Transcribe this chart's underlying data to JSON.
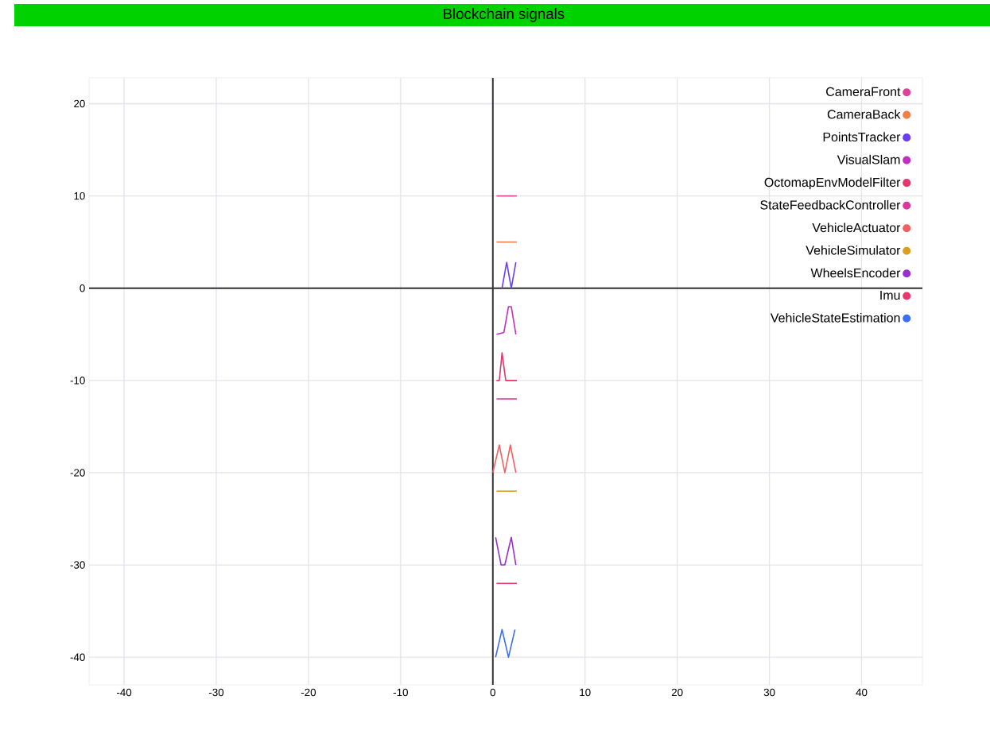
{
  "chart_data": {
    "type": "line",
    "title": "Blockchain signals",
    "xlim": [
      -43.8,
      46.6
    ],
    "ylim": [
      -43,
      22.8
    ],
    "xticks": [
      -40,
      -30,
      -20,
      -10,
      0,
      10,
      20,
      30,
      40
    ],
    "yticks": [
      -40,
      -30,
      -20,
      -10,
      0,
      10,
      20
    ],
    "grid": true,
    "legend": "top right",
    "series": [
      {
        "name": "CameraFront",
        "color": "#e0409a",
        "x": [
          0.4,
          2.6
        ],
        "values": [
          10,
          10
        ]
      },
      {
        "name": "CameraBack",
        "color": "#f07f4a",
        "x": [
          0.4,
          2.6
        ],
        "values": [
          5,
          5
        ]
      },
      {
        "name": "PointsTracker",
        "color": "#6a3ff0",
        "x": [
          1.0,
          1.5,
          2.0,
          2.5
        ],
        "values": [
          0,
          2.8,
          0,
          2.8
        ]
      },
      {
        "name": "VisualSlam",
        "color": "#c030c0",
        "x": [
          0.4,
          1.2,
          1.7,
          2.0,
          2.5
        ],
        "values": [
          -5,
          -4.8,
          -2,
          -2,
          -5
        ]
      },
      {
        "name": "OctomapEnvModelFilter",
        "color": "#e0386a",
        "x": [
          0.4,
          0.7,
          1.0,
          1.4,
          2.6
        ],
        "values": [
          -10,
          -10,
          -7,
          -10,
          -10
        ]
      },
      {
        "name": "StateFeedbackController",
        "color": "#d83a9a",
        "x": [
          0.4,
          2.6
        ],
        "values": [
          -12,
          -12
        ]
      },
      {
        "name": "VehicleActuator",
        "color": "#f06060",
        "x": [
          0,
          0.7,
          1.3,
          1.9,
          2.5
        ],
        "values": [
          -20,
          -17,
          -20,
          -17,
          -20
        ]
      },
      {
        "name": "VehicleSimulator",
        "color": "#d9a020",
        "x": [
          0.4,
          2.6
        ],
        "values": [
          -22,
          -22
        ]
      },
      {
        "name": "WheelsEncoder",
        "color": "#9a30d0",
        "x": [
          0.3,
          0.9,
          1.3,
          2.0,
          2.5
        ],
        "values": [
          -27,
          -30,
          -30,
          -27,
          -30
        ]
      },
      {
        "name": "Imu",
        "color": "#e8386e",
        "x": [
          0.4,
          2.6
        ],
        "values": [
          -32,
          -32
        ]
      },
      {
        "name": "VehicleStateEstimation",
        "color": "#3a6ff0",
        "x": [
          0.3,
          1.0,
          1.7,
          2.4
        ],
        "values": [
          -40,
          -37,
          -40,
          -37
        ]
      }
    ]
  }
}
